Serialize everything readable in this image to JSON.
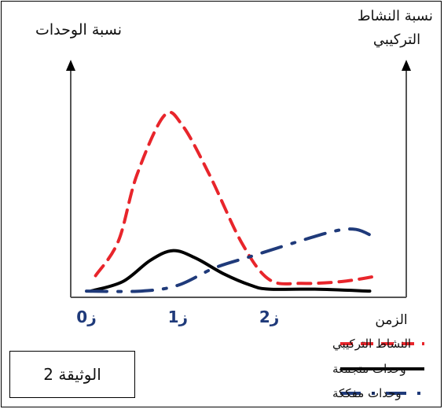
{
  "chart_data": {
    "type": "line",
    "ylabel_left": "نسبة الوحدات",
    "ylabel_right": "نسبة النشاط التركيبي",
    "xlabel": "الزمن",
    "x_ticks": [
      {
        "label": "ز0",
        "t": 0
      },
      {
        "label": "ز1",
        "t": 1
      },
      {
        "label": "ز2",
        "t": 2
      }
    ],
    "xlim": [
      0,
      3.5
    ],
    "ylim": [
      0,
      1
    ],
    "series": [
      {
        "name": "النشاط التركيبي",
        "style": "dashed",
        "color": "#e8252b",
        "points": [
          [
            0.1,
            0.1
          ],
          [
            0.35,
            0.28
          ],
          [
            0.55,
            0.62
          ],
          [
            0.85,
            0.93
          ],
          [
            1.05,
            0.88
          ],
          [
            1.35,
            0.62
          ],
          [
            1.7,
            0.27
          ],
          [
            2.0,
            0.08
          ],
          [
            2.35,
            0.06
          ],
          [
            2.8,
            0.07
          ],
          [
            3.2,
            0.1
          ]
        ]
      },
      {
        "name": "وحدات متجمعة",
        "style": "solid",
        "color": "#000000",
        "points": [
          [
            0.05,
            0.02
          ],
          [
            0.4,
            0.07
          ],
          [
            0.7,
            0.18
          ],
          [
            0.95,
            0.23
          ],
          [
            1.2,
            0.19
          ],
          [
            1.5,
            0.11
          ],
          [
            1.8,
            0.05
          ],
          [
            2.0,
            0.03
          ],
          [
            2.5,
            0.03
          ],
          [
            3.1,
            0.02
          ]
        ]
      },
      {
        "name": "وحدات مفككة",
        "style": "dashdot",
        "color": "#1f3a7a",
        "points": [
          [
            0.0,
            0.02
          ],
          [
            0.6,
            0.02
          ],
          [
            1.0,
            0.05
          ],
          [
            1.4,
            0.14
          ],
          [
            1.8,
            0.2
          ],
          [
            2.2,
            0.26
          ],
          [
            2.7,
            0.33
          ],
          [
            2.95,
            0.34
          ],
          [
            3.15,
            0.3
          ]
        ]
      }
    ]
  },
  "document_label": "الوثيقة 2"
}
